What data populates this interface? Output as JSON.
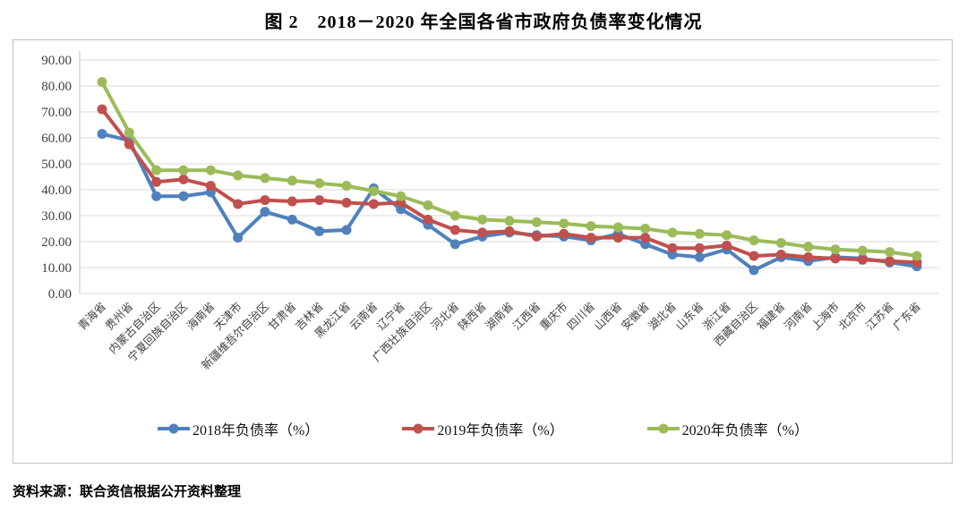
{
  "title": "图 2　2018－2020 年全国各省市政府负债率变化情况",
  "source_note": "资料来源：联合资信根据公开资料整理",
  "colors": {
    "s2018": "#4F81BD",
    "s2019": "#C0504D",
    "s2020": "#9BBB59",
    "grid": "#D9D9D9",
    "axis_line": "#BFBFBF",
    "tick_text": "#3f3f3f",
    "box_border": "#BFBFBF"
  },
  "chart_data": {
    "type": "line",
    "title": "图 2　2018－2020 年全国各省市政府负债率变化情况",
    "xlabel": "",
    "ylabel": "",
    "ylim": [
      0,
      90
    ],
    "ytick_step": 10,
    "ytick_labels": [
      "0.00",
      "10.00",
      "20.00",
      "30.00",
      "40.00",
      "50.00",
      "60.00",
      "70.00",
      "80.00",
      "90.00"
    ],
    "grid": true,
    "legend_position": "bottom",
    "categories": [
      "青海省",
      "贵州省",
      "内蒙古自治区",
      "宁夏回族自治区",
      "海南省",
      "天津市",
      "新疆维吾尔自治区",
      "甘肃省",
      "吉林省",
      "黑龙江省",
      "云南省",
      "辽宁省",
      "广西壮族自治区",
      "河北省",
      "陕西省",
      "湖南省",
      "江西省",
      "重庆市",
      "四川省",
      "山西省",
      "安徽省",
      "湖北省",
      "山东省",
      "浙江省",
      "西藏自治区",
      "福建省",
      "河南省",
      "上海市",
      "北京市",
      "江苏省",
      "广东省"
    ],
    "series": [
      {
        "name": "2018年负债率（%）",
        "color_key": "s2018",
        "values": [
          61.5,
          59.0,
          37.5,
          37.5,
          39.0,
          21.5,
          31.5,
          28.5,
          24.0,
          24.5,
          40.5,
          32.5,
          26.5,
          19.0,
          22.0,
          23.5,
          22.5,
          22.0,
          20.5,
          23.0,
          19.0,
          15.0,
          14.0,
          17.0,
          9.0,
          14.0,
          12.5,
          14.0,
          13.5,
          12.0,
          10.5
        ]
      },
      {
        "name": "2019年负债率（%）",
        "color_key": "s2019",
        "values": [
          71.0,
          57.5,
          43.0,
          44.0,
          41.5,
          34.5,
          36.0,
          35.5,
          36.0,
          35.0,
          34.5,
          35.0,
          28.5,
          24.5,
          23.5,
          24.0,
          22.0,
          23.0,
          21.5,
          21.5,
          21.5,
          17.5,
          17.5,
          18.5,
          14.5,
          15.0,
          14.0,
          13.5,
          13.0,
          12.5,
          12.0
        ]
      },
      {
        "name": "2020年负债率（%）",
        "color_key": "s2020",
        "values": [
          81.5,
          62.0,
          47.5,
          47.5,
          47.5,
          45.5,
          44.5,
          43.5,
          42.5,
          41.5,
          39.5,
          37.5,
          34.0,
          30.0,
          28.5,
          28.0,
          27.5,
          27.0,
          26.0,
          25.5,
          25.0,
          23.5,
          23.0,
          22.5,
          20.5,
          19.5,
          18.0,
          17.0,
          16.5,
          16.0,
          14.5
        ]
      }
    ]
  }
}
